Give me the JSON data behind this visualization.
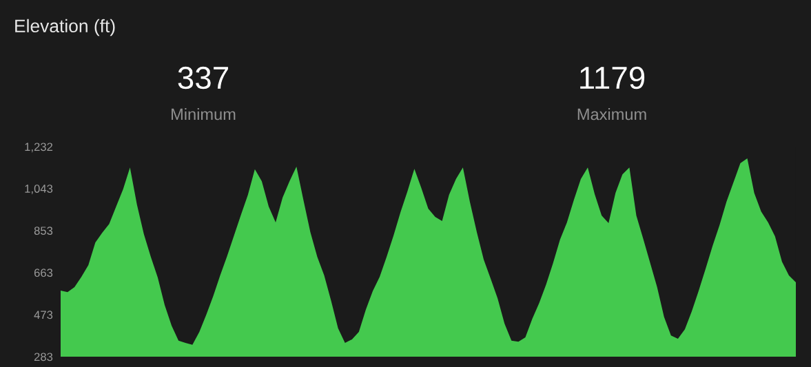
{
  "chart_data": {
    "type": "area",
    "title": "Elevation (ft)",
    "annotations": [
      "337",
      "Minimum",
      "1179",
      "Maximum"
    ],
    "categories": [
      null,
      null,
      null,
      null,
      null,
      null,
      null,
      null,
      null,
      null,
      null,
      null,
      null,
      null,
      null,
      null,
      null,
      null,
      null,
      null,
      null,
      null,
      null,
      null,
      null,
      null,
      null,
      null,
      null,
      null,
      null,
      null,
      null,
      null,
      null,
      null,
      null,
      null,
      null,
      null,
      null,
      null,
      null,
      null,
      null,
      null,
      null,
      null,
      null,
      null,
      null,
      null,
      null,
      null,
      null,
      null,
      null,
      null,
      null,
      null,
      null,
      null,
      null,
      null,
      null,
      null,
      null,
      null,
      null,
      null,
      null,
      null,
      null,
      null,
      null,
      null,
      null,
      null,
      null,
      null,
      null,
      null,
      null,
      null,
      null,
      null,
      null,
      null,
      null,
      null,
      null,
      null,
      null,
      null,
      null,
      null,
      null,
      null,
      null,
      null,
      null,
      null,
      null,
      null,
      null,
      null,
      null
    ],
    "series": [
      {
        "color": "#44c94e",
        "values": [
          582,
          575,
          597,
          644,
          697,
          799,
          843,
          883,
          961,
          1039,
          1138,
          971,
          837,
          734,
          641,
          516,
          423,
          355,
          345,
          337,
          395,
          473,
          557,
          650,
          737,
          831,
          924,
          1014,
          1130,
          1076,
          961,
          890,
          1002,
          1076,
          1142,
          992,
          846,
          734,
          650,
          535,
          411,
          345,
          361,
          395,
          495,
          579,
          644,
          734,
          831,
          936,
          1030,
          1132,
          1045,
          952,
          915,
          896,
          1014,
          1086,
          1138,
          983,
          846,
          722,
          635,
          547,
          432,
          355,
          351,
          370,
          454,
          526,
          610,
          706,
          812,
          890,
          992,
          1086,
          1138,
          1017,
          921,
          887,
          1023,
          1107,
          1138,
          921,
          815,
          706,
          597,
          463,
          379,
          364,
          407,
          488,
          582,
          681,
          784,
          877,
          983,
          1070,
          1157,
          1179,
          1023,
          939,
          890,
          827,
          712,
          650,
          619
        ]
      }
    ],
    "ylim": [
      283,
      1232
    ],
    "yticks": [
      283,
      473,
      663,
      853,
      {
        "value": 1043,
        "label": "1,043"
      },
      {
        "value": 1232,
        "label": "1,232"
      }
    ],
    "grid": false,
    "legend": false
  }
}
